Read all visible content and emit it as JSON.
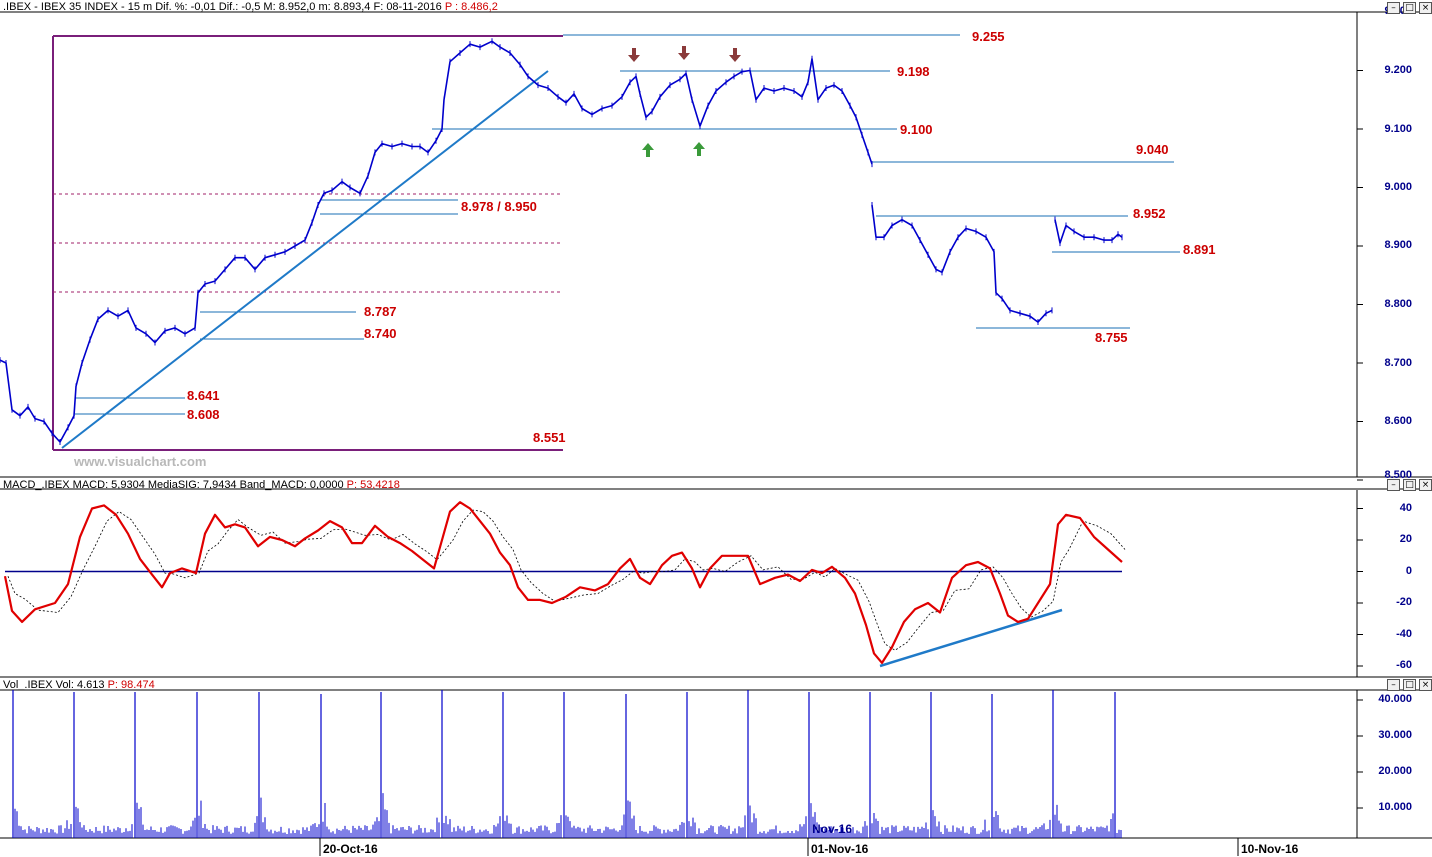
{
  "price_panel": {
    "header": ".IBEX - IBEX 35 INDEX -  15 m  Dif. %: -0,01  Dif.: -0,5  M: 8.952,0  m: 8.893,4  F: 08-11-2016",
    "header_p": "P : 8.486,2",
    "watermark": "www.visualchart.com",
    "y_ticks": [
      "9.300",
      "9.200",
      "9.100",
      "9.000",
      "8.900",
      "8.800",
      "8.700",
      "8.600",
      "8.500"
    ],
    "levels": [
      {
        "label": "9.255"
      },
      {
        "label": "9.198"
      },
      {
        "label": "9.100"
      },
      {
        "label": "9.040"
      },
      {
        "label": "8.978 / 8.950"
      },
      {
        "label": "8.952"
      },
      {
        "label": "8.891"
      },
      {
        "label": "8.787"
      },
      {
        "label": "8.755"
      },
      {
        "label": "8.740"
      },
      {
        "label": "8.641"
      },
      {
        "label": "8.608"
      },
      {
        "label": "8.551"
      }
    ]
  },
  "macd_panel": {
    "header": "MACD_.IBEX  MACD: 5,9304  MediaSIG: 7,9434  Band_MACD: 0,0000",
    "header_p": "P: 53,4218",
    "y_ticks": [
      "40",
      "20",
      "0",
      "-20",
      "-40",
      "-60"
    ]
  },
  "volume_panel": {
    "header": "Vol_.IBEX  Vol: 4.613",
    "header_p": "P: 98.474",
    "y_ticks": [
      "40.000",
      "30.000",
      "20.000",
      "10.000"
    ]
  },
  "x_axis": {
    "ticks": [
      "20-Oct-16",
      "01-Nov-16",
      "10-Nov-16"
    ],
    "mid_label": "Nov-16"
  },
  "chart_data": [
    {
      "type": "line",
      "series": [
        {
          "values": [
            [
              0,
              8.705
            ],
            [
              6,
              8.7
            ],
            [
              12,
              8.62
            ],
            [
              20,
              8.61
            ],
            [
              28,
              8.625
            ],
            [
              35,
              8.605
            ],
            [
              44,
              8.6
            ],
            [
              52,
              8.58
            ],
            [
              60,
              8.565
            ],
            [
              68,
              8.59
            ],
            [
              74,
              8.61
            ],
            [
              76,
              8.66
            ],
            [
              82,
              8.7
            ],
            [
              90,
              8.74
            ],
            [
              98,
              8.775
            ],
            [
              108,
              8.79
            ],
            [
              118,
              8.78
            ],
            [
              128,
              8.79
            ],
            [
              136,
              8.76
            ],
            [
              146,
              8.75
            ],
            [
              155,
              8.735
            ],
            [
              165,
              8.755
            ],
            [
              175,
              8.76
            ],
            [
              185,
              8.75
            ],
            [
              195,
              8.76
            ],
            [
              198,
              8.82
            ],
            [
              205,
              8.835
            ],
            [
              215,
              8.84
            ],
            [
              225,
              8.86
            ],
            [
              235,
              8.88
            ],
            [
              245,
              8.88
            ],
            [
              255,
              8.86
            ],
            [
              265,
              8.88
            ],
            [
              275,
              8.885
            ],
            [
              285,
              8.89
            ],
            [
              295,
              8.9
            ],
            [
              305,
              8.91
            ],
            [
              312,
              8.94
            ],
            [
              318,
              8.97
            ],
            [
              324,
              8.99
            ],
            [
              332,
              8.995
            ],
            [
              342,
              9.01
            ],
            [
              350,
              9.0
            ],
            [
              360,
              8.99
            ],
            [
              368,
              9.02
            ],
            [
              375,
              9.06
            ],
            [
              382,
              9.075
            ],
            [
              392,
              9.07
            ],
            [
              402,
              9.075
            ],
            [
              412,
              9.07
            ],
            [
              420,
              9.07
            ],
            [
              428,
              9.06
            ],
            [
              436,
              9.08
            ],
            [
              442,
              9.1
            ],
            [
              444,
              9.15
            ],
            [
              450,
              9.215
            ],
            [
              460,
              9.23
            ],
            [
              470,
              9.245
            ],
            [
              480,
              9.24
            ],
            [
              492,
              9.25
            ],
            [
              500,
              9.24
            ],
            [
              510,
              9.23
            ],
            [
              520,
              9.21
            ],
            [
              528,
              9.19
            ],
            [
              538,
              9.175
            ],
            [
              548,
              9.17
            ],
            [
              558,
              9.155
            ],
            [
              566,
              9.145
            ],
            [
              574,
              9.16
            ],
            [
              582,
              9.135
            ],
            [
              592,
              9.125
            ],
            [
              602,
              9.135
            ],
            [
              612,
              9.14
            ],
            [
              622,
              9.155
            ],
            [
              630,
              9.18
            ],
            [
              636,
              9.19
            ],
            [
              640,
              9.16
            ],
            [
              646,
              9.12
            ],
            [
              652,
              9.13
            ],
            [
              660,
              9.155
            ],
            [
              670,
              9.175
            ],
            [
              680,
              9.185
            ],
            [
              686,
              9.195
            ],
            [
              692,
              9.15
            ],
            [
              700,
              9.105
            ],
            [
              708,
              9.14
            ],
            [
              716,
              9.165
            ],
            [
              726,
              9.18
            ],
            [
              734,
              9.19
            ],
            [
              742,
              9.198
            ],
            [
              750,
              9.2
            ],
            [
              756,
              9.15
            ],
            [
              764,
              9.17
            ],
            [
              774,
              9.165
            ],
            [
              784,
              9.17
            ],
            [
              794,
              9.165
            ],
            [
              802,
              9.155
            ],
            [
              808,
              9.18
            ],
            [
              812,
              9.22
            ],
            [
              818,
              9.15
            ],
            [
              826,
              9.17
            ],
            [
              834,
              9.175
            ],
            [
              842,
              9.165
            ],
            [
              850,
              9.14
            ],
            [
              856,
              9.12
            ],
            [
              862,
              9.09
            ],
            [
              868,
              9.06
            ],
            [
              872,
              9.04
            ]
          ]
        }
      ]
    },
    {
      "type": "line",
      "series": [
        {
          "values": [
            [
              872,
              8.97
            ],
            [
              876,
              8.915
            ],
            [
              884,
              8.915
            ],
            [
              892,
              8.935
            ],
            [
              902,
              8.945
            ],
            [
              912,
              8.935
            ],
            [
              920,
              8.91
            ],
            [
              928,
              8.885
            ],
            [
              936,
              8.86
            ],
            [
              942,
              8.855
            ],
            [
              950,
              8.89
            ],
            [
              958,
              8.915
            ],
            [
              966,
              8.93
            ],
            [
              976,
              8.925
            ],
            [
              986,
              8.915
            ],
            [
              994,
              8.89
            ],
            [
              996,
              8.82
            ],
            [
              1002,
              8.81
            ],
            [
              1010,
              8.79
            ],
            [
              1020,
              8.785
            ],
            [
              1030,
              8.78
            ],
            [
              1038,
              8.77
            ],
            [
              1046,
              8.785
            ],
            [
              1052,
              8.79
            ]
          ]
        }
      ]
    },
    {
      "type": "line",
      "series": [
        {
          "values": [
            [
              1055,
              8.945
            ],
            [
              1060,
              8.905
            ],
            [
              1066,
              8.935
            ],
            [
              1074,
              8.925
            ],
            [
              1084,
              8.915
            ],
            [
              1094,
              8.915
            ],
            [
              1104,
              8.91
            ],
            [
              1112,
              8.91
            ],
            [
              1118,
              8.92
            ],
            [
              1122,
              8.915
            ]
          ]
        }
      ]
    }
  ]
}
